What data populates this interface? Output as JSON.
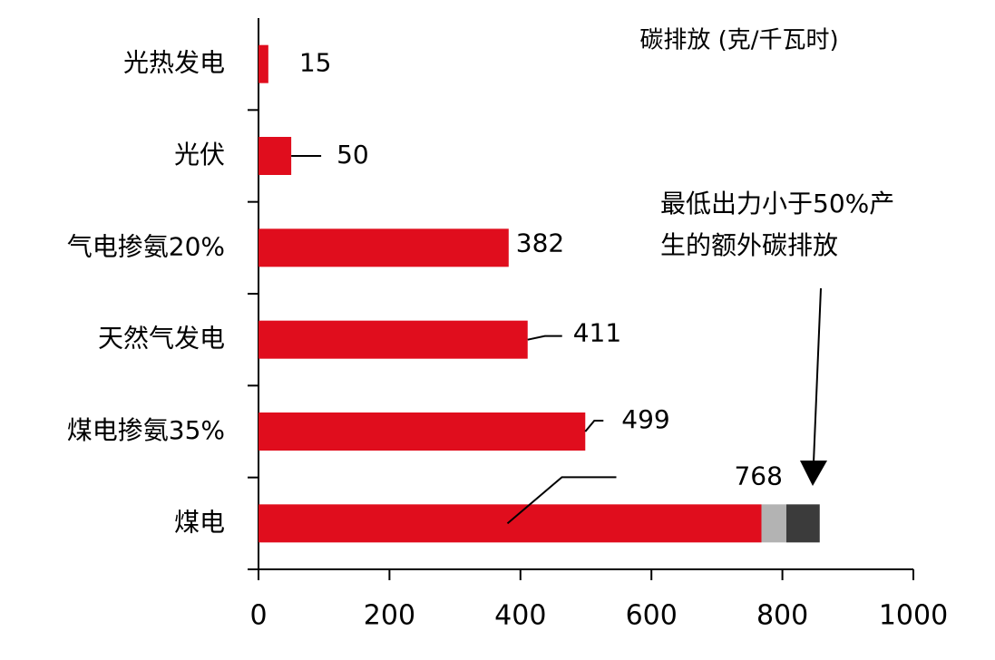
{
  "chart_data": {
    "type": "stacked_barh",
    "axis_title": "碳排放 (克/千瓦时)",
    "annotation": [
      "最低出力小于50%产",
      "生的额外碳排放"
    ],
    "categories": [
      "光热发电",
      "光伏",
      "气电掺氨20%",
      "天然气发电",
      "煤电掺氨35%",
      "煤电"
    ],
    "series": [
      {
        "color": "#e00d1d",
        "values": [
          15,
          50,
          382,
          411,
          499,
          768
        ]
      },
      {
        "color": "#b3b3b3",
        "values": [
          null,
          null,
          null,
          null,
          null,
          38
        ]
      },
      {
        "color": "#3b3b3b",
        "values": [
          null,
          null,
          null,
          null,
          null,
          51
        ]
      }
    ],
    "xlim": [
      0,
      1000
    ],
    "xticks": [
      0,
      200,
      400,
      600,
      800,
      1000
    ],
    "grid": false
  }
}
